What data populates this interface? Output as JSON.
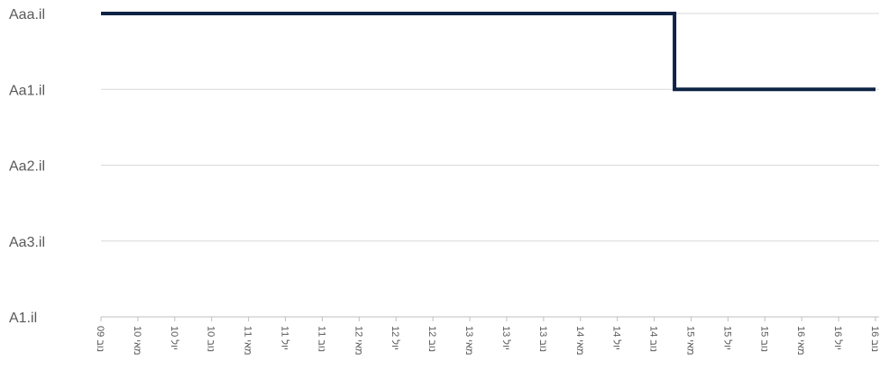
{
  "chart_data": {
    "type": "line",
    "line_style": "step",
    "y_categories": [
      "Aaa.il",
      "Aa1.il",
      "Aa2.il",
      "Aa3.il",
      "A1.il"
    ],
    "x_ticks": [
      "09 נוב",
      "10 מאי",
      "10 יול",
      "10 נוב",
      "11 מאי",
      "11 יול",
      "11 נוב",
      "12 מאי",
      "12 יול",
      "12 נוב",
      "13 מאי",
      "13 יול",
      "13 נוב",
      "14 מאי",
      "14 יול",
      "14 נוב",
      "15 מאי",
      "15 יול",
      "15 נוב",
      "16 מאי",
      "16 יול",
      "16 נוב"
    ],
    "series": [
      {
        "x": [
          0,
          15.55,
          15.55,
          21
        ],
        "y": [
          "Aaa.il",
          "Aaa.il",
          "Aa1.il",
          "Aa1.il"
        ],
        "color": "#0d2344"
      }
    ],
    "grid": true,
    "legend": "none",
    "colors": {
      "line": "#0d2344",
      "grid": "#d9d9d9",
      "axis": "#bfbfbf",
      "text": "#595959"
    }
  }
}
